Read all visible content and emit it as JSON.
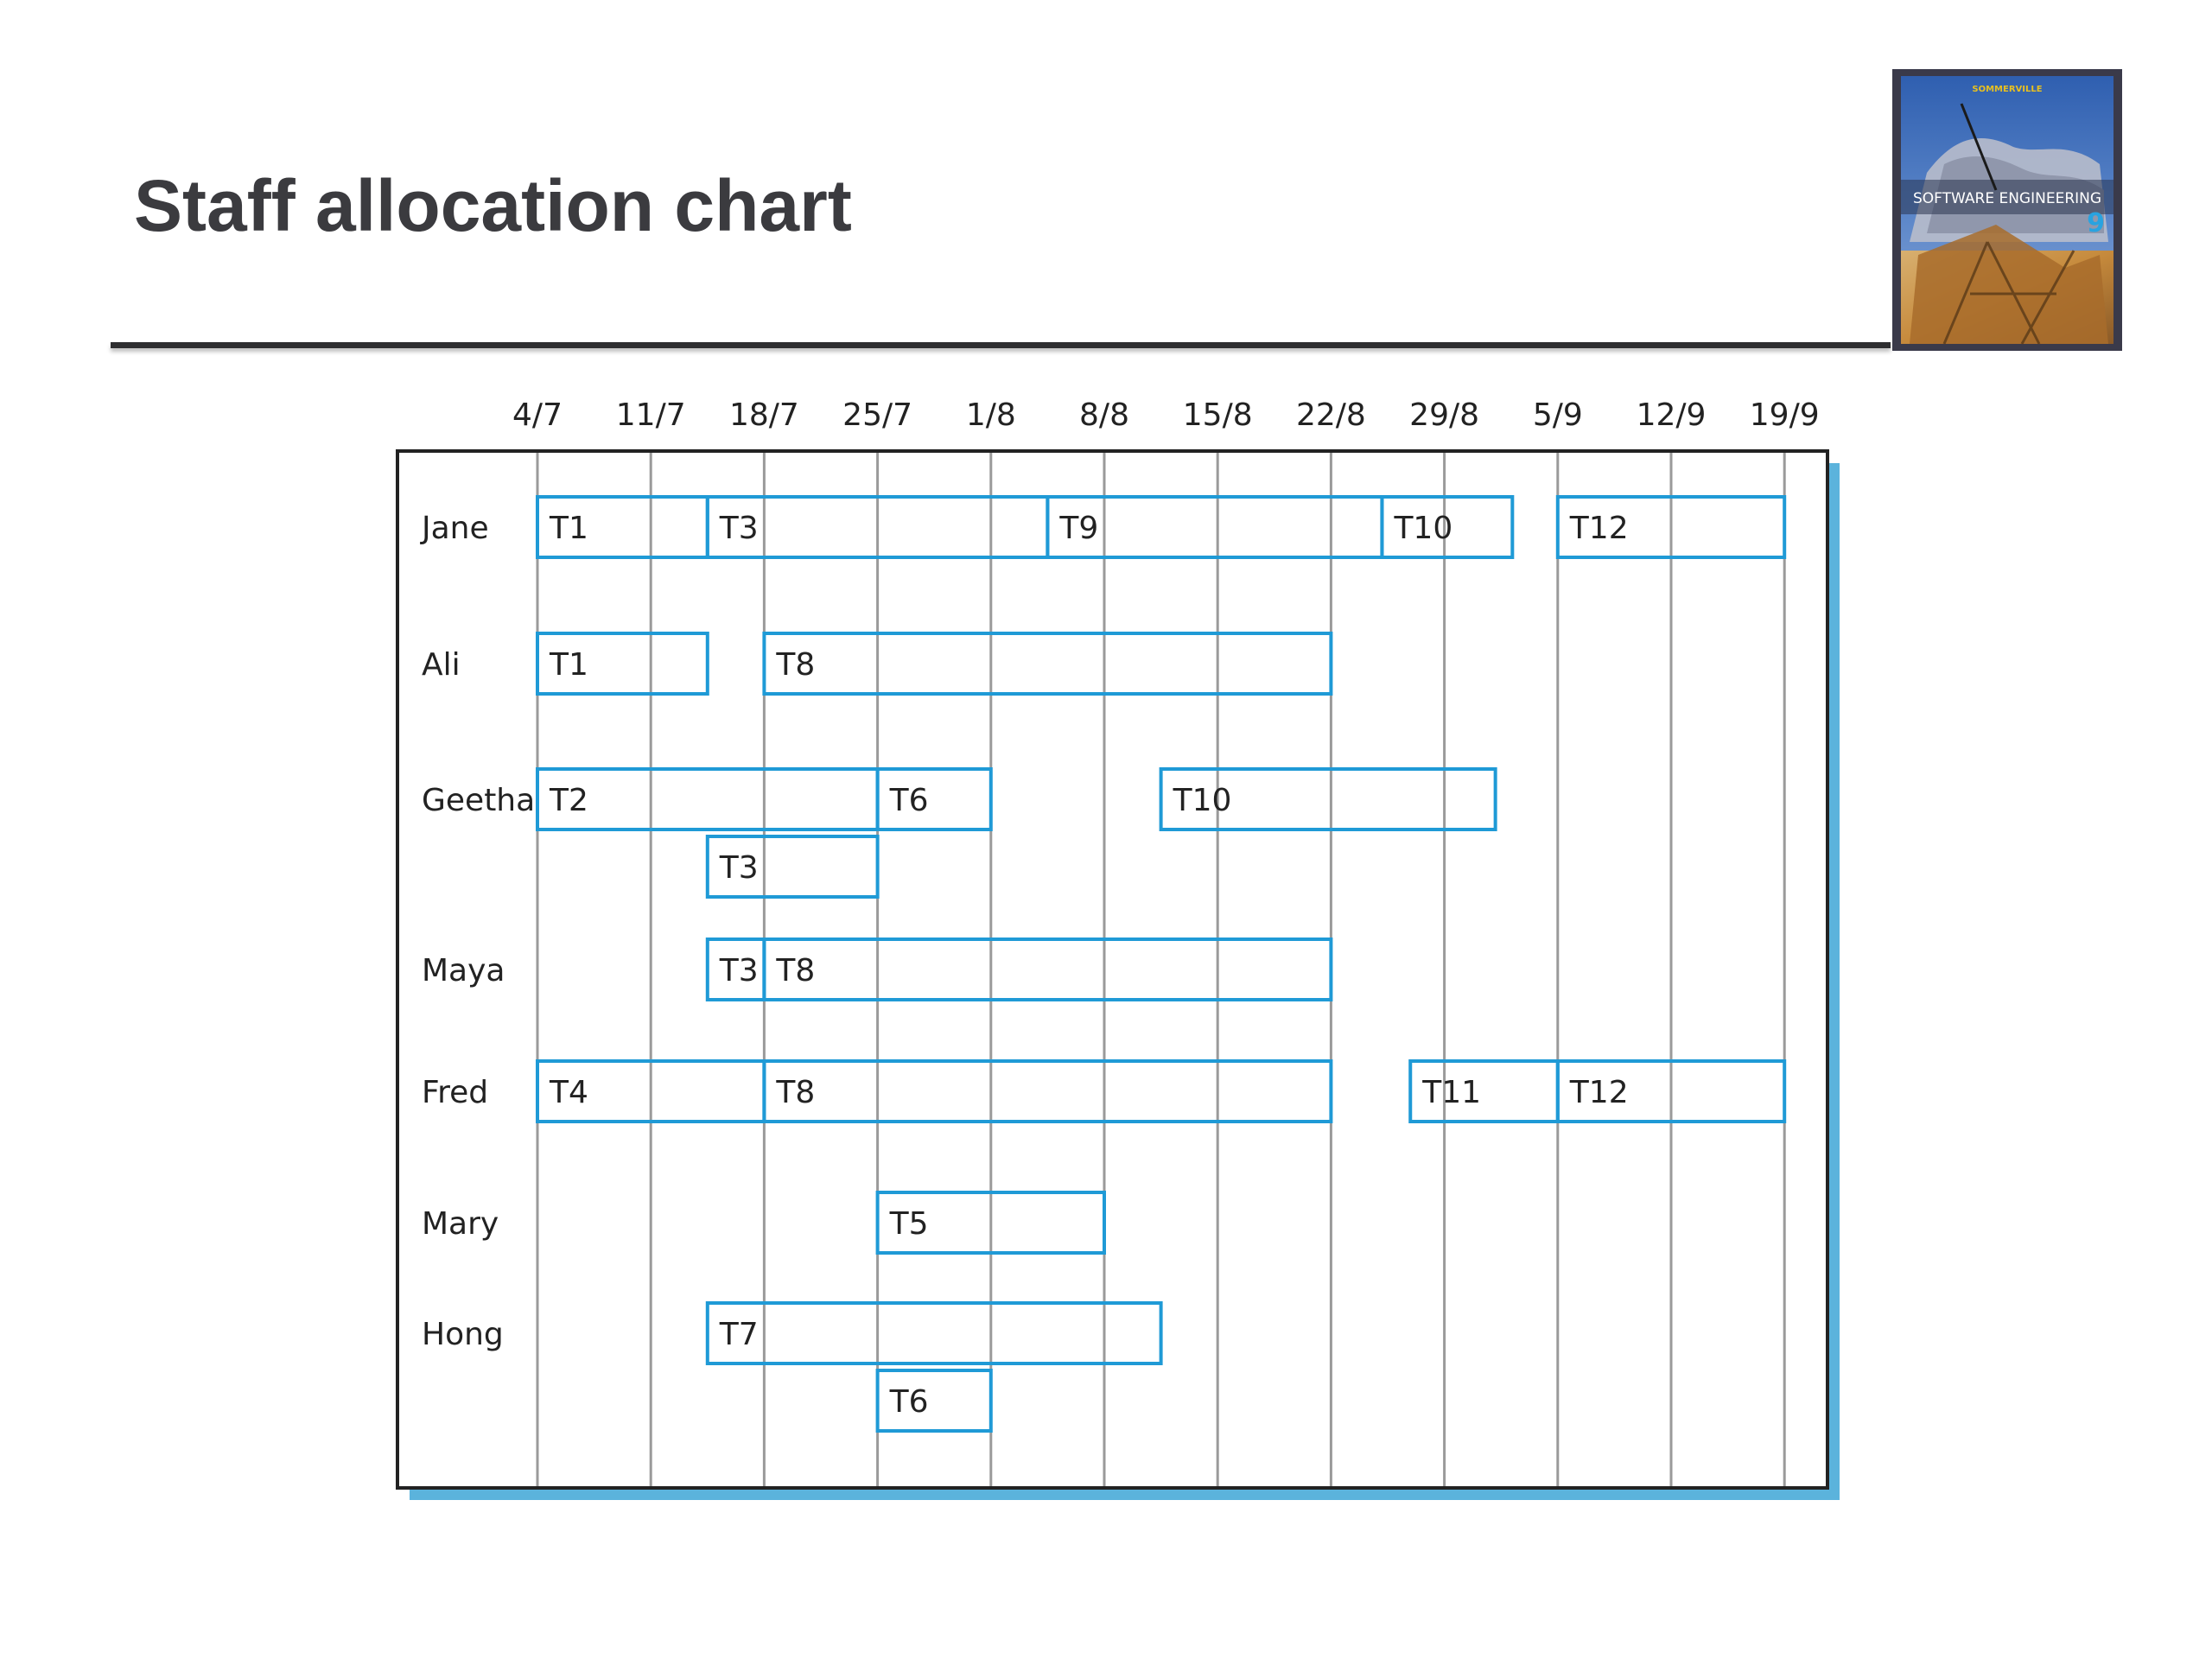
{
  "slide": {
    "title": "Staff allocation chart"
  },
  "book_cover": {
    "author": "SOMMERVILLE",
    "title": "SOFTWARE ENGINEERING",
    "edition": "9",
    "colors": {
      "frame": "#3a3a4a",
      "title_text": "#ffffff",
      "edition_text": "#29a3e0",
      "author_text": "#e8c020"
    }
  },
  "chart_data": {
    "type": "gantt",
    "dates": [
      "4/7",
      "11/7",
      "18/7",
      "25/7",
      "1/8",
      "8/8",
      "15/8",
      "22/8",
      "29/8",
      "5/9",
      "12/9",
      "19/9"
    ],
    "people": [
      "Jane",
      "Ali",
      "Geetha",
      "Maya",
      "Fred",
      "Mary",
      "Hong"
    ],
    "allocations": [
      {
        "person": "Jane",
        "row": 0,
        "task": "T1",
        "start": 0.0,
        "end": 1.5
      },
      {
        "person": "Jane",
        "row": 0,
        "task": "T3",
        "start": 1.5,
        "end": 4.5
      },
      {
        "person": "Jane",
        "row": 0,
        "task": "T9",
        "start": 4.5,
        "end": 7.45
      },
      {
        "person": "Jane",
        "row": 0,
        "task": "T10",
        "start": 7.45,
        "end": 8.6
      },
      {
        "person": "Jane",
        "row": 0,
        "task": "T12",
        "start": 9.0,
        "end": 11.0
      },
      {
        "person": "Ali",
        "row": 0,
        "task": "T1",
        "start": 0.0,
        "end": 1.5
      },
      {
        "person": "Ali",
        "row": 0,
        "task": "T8",
        "start": 2.0,
        "end": 7.0
      },
      {
        "person": "Geetha",
        "row": 0,
        "task": "T2",
        "start": 0.0,
        "end": 3.0
      },
      {
        "person": "Geetha",
        "row": 0,
        "task": "T6",
        "start": 3.0,
        "end": 4.0
      },
      {
        "person": "Geetha",
        "row": 0,
        "task": "T10",
        "start": 5.5,
        "end": 8.45
      },
      {
        "person": "Geetha",
        "row": 1,
        "task": "T3",
        "start": 1.5,
        "end": 3.0
      },
      {
        "person": "Maya",
        "row": 0,
        "task": "T3",
        "start": 1.5,
        "end": 2.0
      },
      {
        "person": "Maya",
        "row": 0,
        "task": "T8",
        "start": 2.0,
        "end": 7.0
      },
      {
        "person": "Fred",
        "row": 0,
        "task": "T4",
        "start": 0.0,
        "end": 2.0
      },
      {
        "person": "Fred",
        "row": 0,
        "task": "T8",
        "start": 2.0,
        "end": 7.0
      },
      {
        "person": "Fred",
        "row": 0,
        "task": "T11",
        "start": 7.7,
        "end": 9.0
      },
      {
        "person": "Fred",
        "row": 0,
        "task": "T12",
        "start": 9.0,
        "end": 11.0
      },
      {
        "person": "Mary",
        "row": 0,
        "task": "T5",
        "start": 3.0,
        "end": 5.0
      },
      {
        "person": "Hong",
        "row": 0,
        "task": "T7",
        "start": 1.5,
        "end": 5.5
      },
      {
        "person": "Hong",
        "row": 1,
        "task": "T6",
        "start": 3.0,
        "end": 4.0
      }
    ],
    "colors": {
      "bar_stroke": "#1f9ad6",
      "grid": "#9a9a9a",
      "frame": "#222222",
      "frame_shadow": "#5bb3dc"
    }
  }
}
